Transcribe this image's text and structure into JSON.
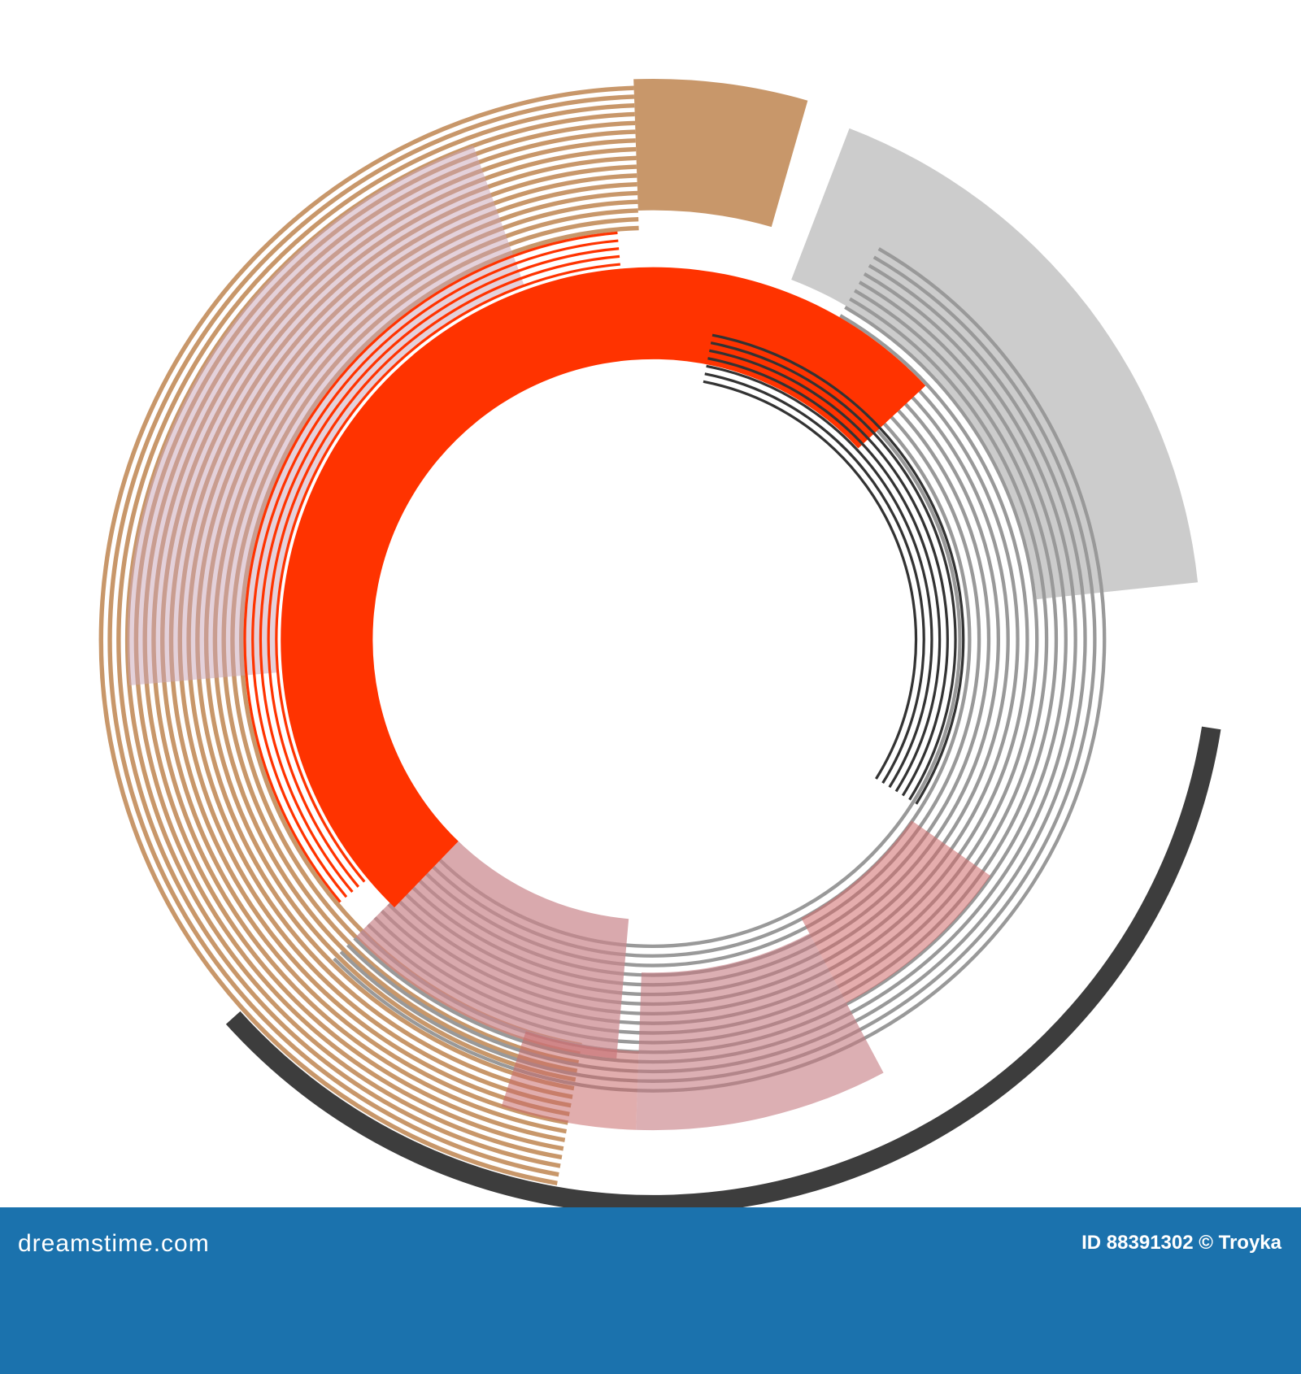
{
  "footer": {
    "logo": "dreamstime.com",
    "credit": "ID 88391302 © Troyka"
  }
}
